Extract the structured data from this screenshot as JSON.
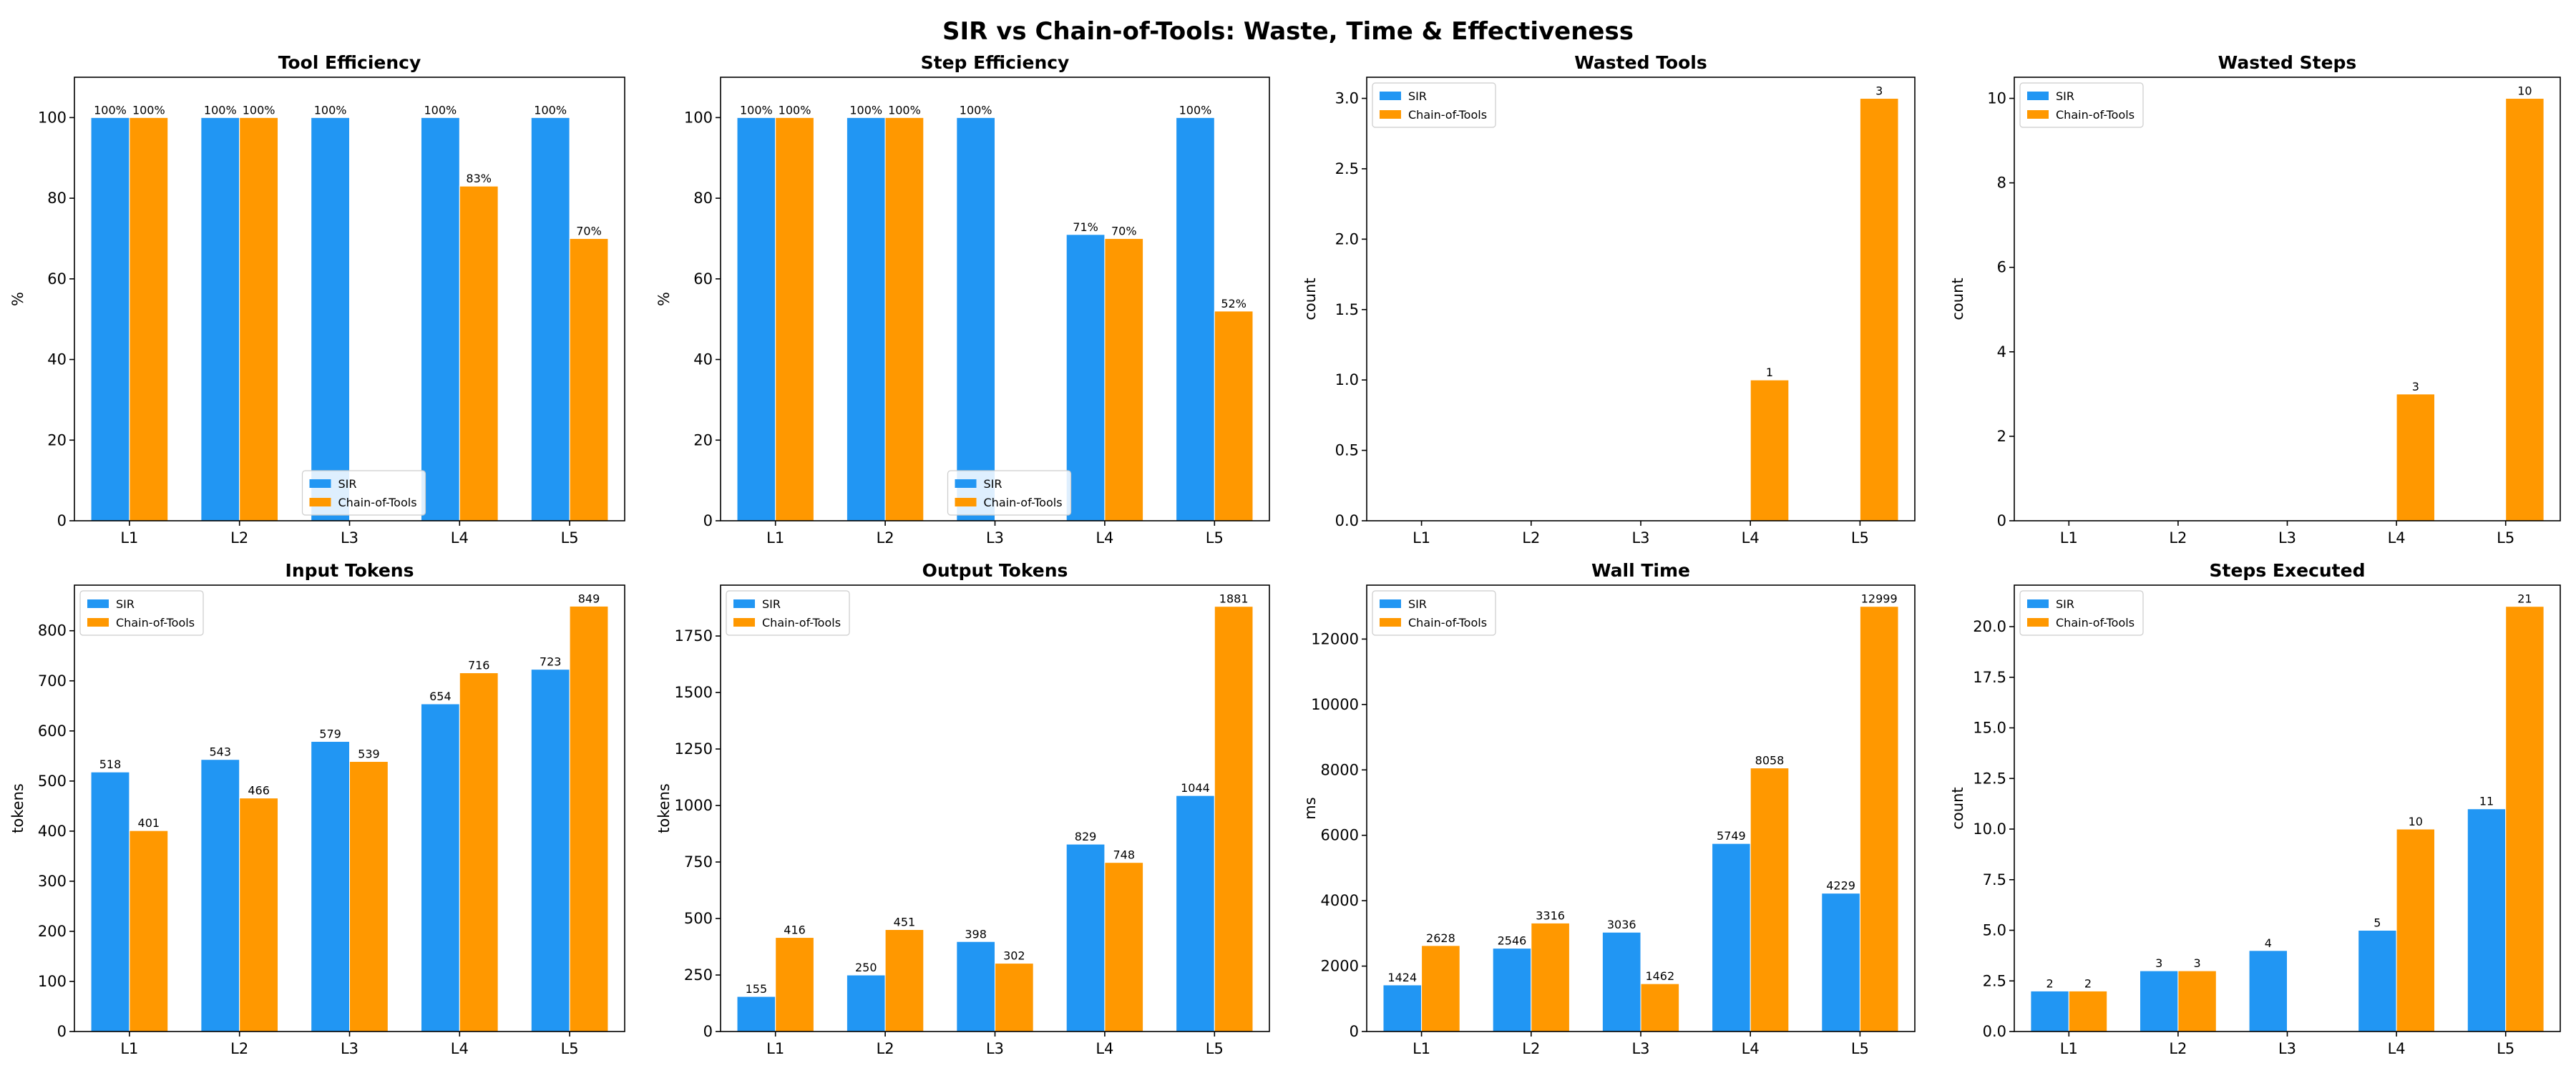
{
  "figure": {
    "title": "SIR vs Chain-of-Tools: Waste, Time & Effectiveness"
  },
  "colors": {
    "SIR": "#2196F3",
    "Chain-of-Tools": "#FF9800"
  },
  "chart_data": [
    {
      "type": "bar",
      "title": "Tool Efficiency",
      "xlabel": "",
      "ylabel": "%",
      "categories": [
        "L1",
        "L2",
        "L3",
        "L4",
        "L5"
      ],
      "ylim": [
        0,
        110
      ],
      "yticks": [
        0,
        20,
        40,
        60,
        80,
        100
      ],
      "legend": "lower-center",
      "series": [
        {
          "name": "SIR",
          "values": [
            100,
            100,
            100,
            100,
            100
          ],
          "labels": [
            "100%",
            "100%",
            "100%",
            "100%",
            "100%"
          ]
        },
        {
          "name": "Chain-of-Tools",
          "values": [
            100,
            100,
            0,
            83,
            70
          ],
          "labels": [
            "100%",
            "100%",
            "",
            "83%",
            "70%"
          ]
        }
      ]
    },
    {
      "type": "bar",
      "title": "Step Efficiency",
      "xlabel": "",
      "ylabel": "%",
      "categories": [
        "L1",
        "L2",
        "L3",
        "L4",
        "L5"
      ],
      "ylim": [
        0,
        110
      ],
      "yticks": [
        0,
        20,
        40,
        60,
        80,
        100
      ],
      "legend": "lower-center",
      "series": [
        {
          "name": "SIR",
          "values": [
            100,
            100,
            100,
            71,
            100
          ],
          "labels": [
            "100%",
            "100%",
            "100%",
            "71%",
            "100%"
          ]
        },
        {
          "name": "Chain-of-Tools",
          "values": [
            100,
            100,
            0,
            70,
            52
          ],
          "labels": [
            "100%",
            "100%",
            "",
            "70%",
            "52%"
          ]
        }
      ]
    },
    {
      "type": "bar",
      "title": "Wasted Tools",
      "xlabel": "",
      "ylabel": "count",
      "categories": [
        "L1",
        "L2",
        "L3",
        "L4",
        "L5"
      ],
      "ylim": [
        0,
        3.15
      ],
      "yticks": [
        0.0,
        0.5,
        1.0,
        1.5,
        2.0,
        2.5,
        3.0
      ],
      "tickFormat": "1dp",
      "legend": "upper-left",
      "series": [
        {
          "name": "SIR",
          "values": [
            0,
            0,
            0,
            0,
            0
          ],
          "labels": [
            "",
            "",
            "",
            "",
            ""
          ]
        },
        {
          "name": "Chain-of-Tools",
          "values": [
            0,
            0,
            0,
            1,
            3
          ],
          "labels": [
            "",
            "",
            "",
            "1",
            "3"
          ]
        }
      ]
    },
    {
      "type": "bar",
      "title": "Wasted Steps",
      "xlabel": "",
      "ylabel": "count",
      "categories": [
        "L1",
        "L2",
        "L3",
        "L4",
        "L5"
      ],
      "ylim": [
        0,
        10.5
      ],
      "yticks": [
        0,
        2,
        4,
        6,
        8,
        10
      ],
      "legend": "upper-left",
      "series": [
        {
          "name": "SIR",
          "values": [
            0,
            0,
            0,
            0,
            0
          ],
          "labels": [
            "",
            "",
            "",
            "",
            ""
          ]
        },
        {
          "name": "Chain-of-Tools",
          "values": [
            0,
            0,
            0,
            3,
            10
          ],
          "labels": [
            "",
            "",
            "",
            "3",
            "10"
          ]
        }
      ]
    },
    {
      "type": "bar",
      "title": "Input Tokens",
      "xlabel": "",
      "ylabel": "tokens",
      "categories": [
        "L1",
        "L2",
        "L3",
        "L4",
        "L5"
      ],
      "ylim": [
        0,
        891
      ],
      "yticks": [
        0,
        100,
        200,
        300,
        400,
        500,
        600,
        700,
        800
      ],
      "legend": "upper-left",
      "series": [
        {
          "name": "SIR",
          "values": [
            518,
            543,
            579,
            654,
            723
          ],
          "labels": [
            "518",
            "543",
            "579",
            "654",
            "723"
          ]
        },
        {
          "name": "Chain-of-Tools",
          "values": [
            401,
            466,
            539,
            716,
            849
          ],
          "labels": [
            "401",
            "466",
            "539",
            "716",
            "849"
          ]
        }
      ]
    },
    {
      "type": "bar",
      "title": "Output Tokens",
      "xlabel": "",
      "ylabel": "tokens",
      "categories": [
        "L1",
        "L2",
        "L3",
        "L4",
        "L5"
      ],
      "ylim": [
        0,
        1975
      ],
      "yticks": [
        0,
        250,
        500,
        750,
        1000,
        1250,
        1500,
        1750
      ],
      "legend": "upper-left",
      "series": [
        {
          "name": "SIR",
          "values": [
            155,
            250,
            398,
            829,
            1044
          ],
          "labels": [
            "155",
            "250",
            "398",
            "829",
            "1044"
          ]
        },
        {
          "name": "Chain-of-Tools",
          "values": [
            416,
            451,
            302,
            748,
            1881
          ],
          "labels": [
            "416",
            "451",
            "302",
            "748",
            "1881"
          ]
        }
      ]
    },
    {
      "type": "bar",
      "title": "Wall Time",
      "xlabel": "",
      "ylabel": "ms",
      "categories": [
        "L1",
        "L2",
        "L3",
        "L4",
        "L5"
      ],
      "ylim": [
        0,
        13649
      ],
      "yticks": [
        0,
        2000,
        4000,
        6000,
        8000,
        10000,
        12000
      ],
      "legend": "upper-left",
      "series": [
        {
          "name": "SIR",
          "values": [
            1424,
            2546,
            3036,
            5749,
            4229
          ],
          "labels": [
            "1424",
            "2546",
            "3036",
            "5749",
            "4229"
          ]
        },
        {
          "name": "Chain-of-Tools",
          "values": [
            2628,
            3316,
            1462,
            8058,
            12999
          ],
          "labels": [
            "2628",
            "3316",
            "1462",
            "8058",
            "12999"
          ]
        }
      ]
    },
    {
      "type": "bar",
      "title": "Steps Executed",
      "xlabel": "",
      "ylabel": "count",
      "categories": [
        "L1",
        "L2",
        "L3",
        "L4",
        "L5"
      ],
      "ylim": [
        0,
        22.05
      ],
      "yticks": [
        0.0,
        2.5,
        5.0,
        7.5,
        10.0,
        12.5,
        15.0,
        17.5,
        20.0
      ],
      "tickFormat": "1dp",
      "legend": "upper-left",
      "series": [
        {
          "name": "SIR",
          "values": [
            2,
            3,
            4,
            5,
            11
          ],
          "labels": [
            "2",
            "3",
            "4",
            "5",
            "11"
          ]
        },
        {
          "name": "Chain-of-Tools",
          "values": [
            2,
            3,
            0,
            10,
            21
          ],
          "labels": [
            "2",
            "3",
            "",
            "10",
            "21"
          ]
        }
      ]
    }
  ]
}
